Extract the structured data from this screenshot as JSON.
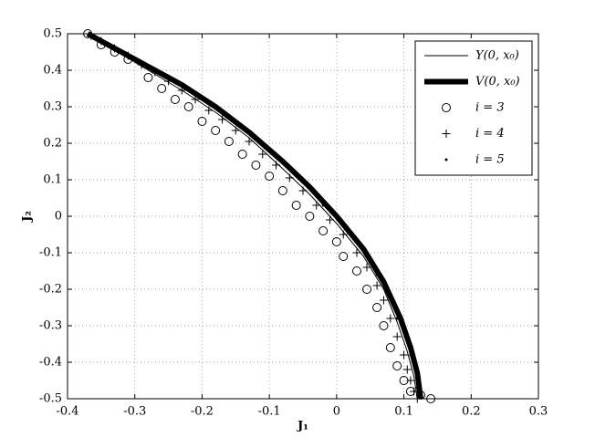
{
  "chart_data": {
    "type": "line",
    "xlabel": "J₁",
    "ylabel": "J₂",
    "xlim": [
      -0.4,
      0.3
    ],
    "xticks": [
      -0.4,
      -0.3,
      -0.2,
      -0.1,
      0,
      0.1,
      0.2,
      0.3
    ],
    "ylim": [
      -0.5,
      0.5
    ],
    "yticks": [
      -0.5,
      -0.4,
      -0.3,
      -0.2,
      -0.1,
      0,
      0.1,
      0.2,
      0.3,
      0.4,
      0.5
    ],
    "grid": true,
    "legend": "upper right",
    "series": [
      {
        "name": "Y(0, x₀)",
        "color": "#000000",
        "line_width": 1,
        "marker": "none",
        "x": [
          -0.37,
          -0.33,
          -0.28,
          -0.23,
          -0.18,
          -0.13,
          -0.08,
          -0.04,
          0,
          0.04,
          0.07,
          0.09,
          0.105,
          0.115,
          0.12
        ],
        "values": [
          0.5,
          0.455,
          0.4,
          0.345,
          0.285,
          0.215,
          0.13,
          0.06,
          -0.02,
          -0.11,
          -0.2,
          -0.29,
          -0.37,
          -0.44,
          -0.5
        ]
      },
      {
        "name": "V(0, x₀)",
        "color": "#000000",
        "line_width": 6,
        "marker": "none",
        "x": [
          -0.37,
          -0.33,
          -0.28,
          -0.23,
          -0.18,
          -0.13,
          -0.08,
          -0.04,
          0,
          0.04,
          0.07,
          0.095,
          0.11,
          0.12,
          0.125
        ],
        "values": [
          0.5,
          0.46,
          0.41,
          0.36,
          0.3,
          0.23,
          0.15,
          0.08,
          0,
          -0.09,
          -0.18,
          -0.28,
          -0.36,
          -0.43,
          -0.5
        ]
      },
      {
        "name": "i = 3",
        "color": "#000000",
        "line_width": 0,
        "marker": "o",
        "x": [
          -0.37,
          -0.35,
          -0.33,
          -0.31,
          -0.28,
          -0.26,
          -0.24,
          -0.22,
          -0.2,
          -0.18,
          -0.16,
          -0.14,
          -0.12,
          -0.1,
          -0.08,
          -0.06,
          -0.04,
          -0.02,
          0,
          0.01,
          0.03,
          0.045,
          0.06,
          0.07,
          0.08,
          0.09,
          0.1,
          0.11,
          0.125,
          0.14
        ],
        "values": [
          0.5,
          0.47,
          0.45,
          0.43,
          0.38,
          0.35,
          0.32,
          0.3,
          0.26,
          0.235,
          0.205,
          0.17,
          0.14,
          0.11,
          0.07,
          0.03,
          0,
          -0.04,
          -0.07,
          -0.11,
          -0.15,
          -0.2,
          -0.25,
          -0.3,
          -0.36,
          -0.41,
          -0.45,
          -0.48,
          -0.49,
          -0.5
        ]
      },
      {
        "name": "i = 4",
        "color": "#000000",
        "line_width": 0,
        "marker": "+",
        "x": [
          -0.365,
          -0.35,
          -0.33,
          -0.31,
          -0.29,
          -0.27,
          -0.25,
          -0.23,
          -0.21,
          -0.19,
          -0.17,
          -0.15,
          -0.13,
          -0.11,
          -0.09,
          -0.07,
          -0.05,
          -0.03,
          -0.01,
          0.01,
          0.03,
          0.045,
          0.06,
          0.07,
          0.08,
          0.09,
          0.1,
          0.105,
          0.11,
          0.115,
          0.12
        ],
        "values": [
          0.495,
          0.48,
          0.46,
          0.44,
          0.415,
          0.395,
          0.37,
          0.345,
          0.32,
          0.29,
          0.265,
          0.235,
          0.205,
          0.17,
          0.14,
          0.105,
          0.07,
          0.03,
          -0.01,
          -0.05,
          -0.1,
          -0.14,
          -0.19,
          -0.23,
          -0.28,
          -0.33,
          -0.38,
          -0.42,
          -0.45,
          -0.48,
          -0.5
        ]
      },
      {
        "name": "i = 5",
        "color": "#000000",
        "line_width": 0,
        "marker": ".",
        "x": [
          -0.36,
          -0.32,
          -0.27,
          -0.22,
          -0.17,
          -0.12,
          -0.07,
          -0.02,
          0.02,
          0.06,
          0.09,
          0.11,
          0.12
        ],
        "values": [
          0.49,
          0.45,
          0.4,
          0.345,
          0.285,
          0.21,
          0.13,
          0.03,
          -0.05,
          -0.16,
          -0.28,
          -0.38,
          -0.47
        ]
      }
    ]
  }
}
